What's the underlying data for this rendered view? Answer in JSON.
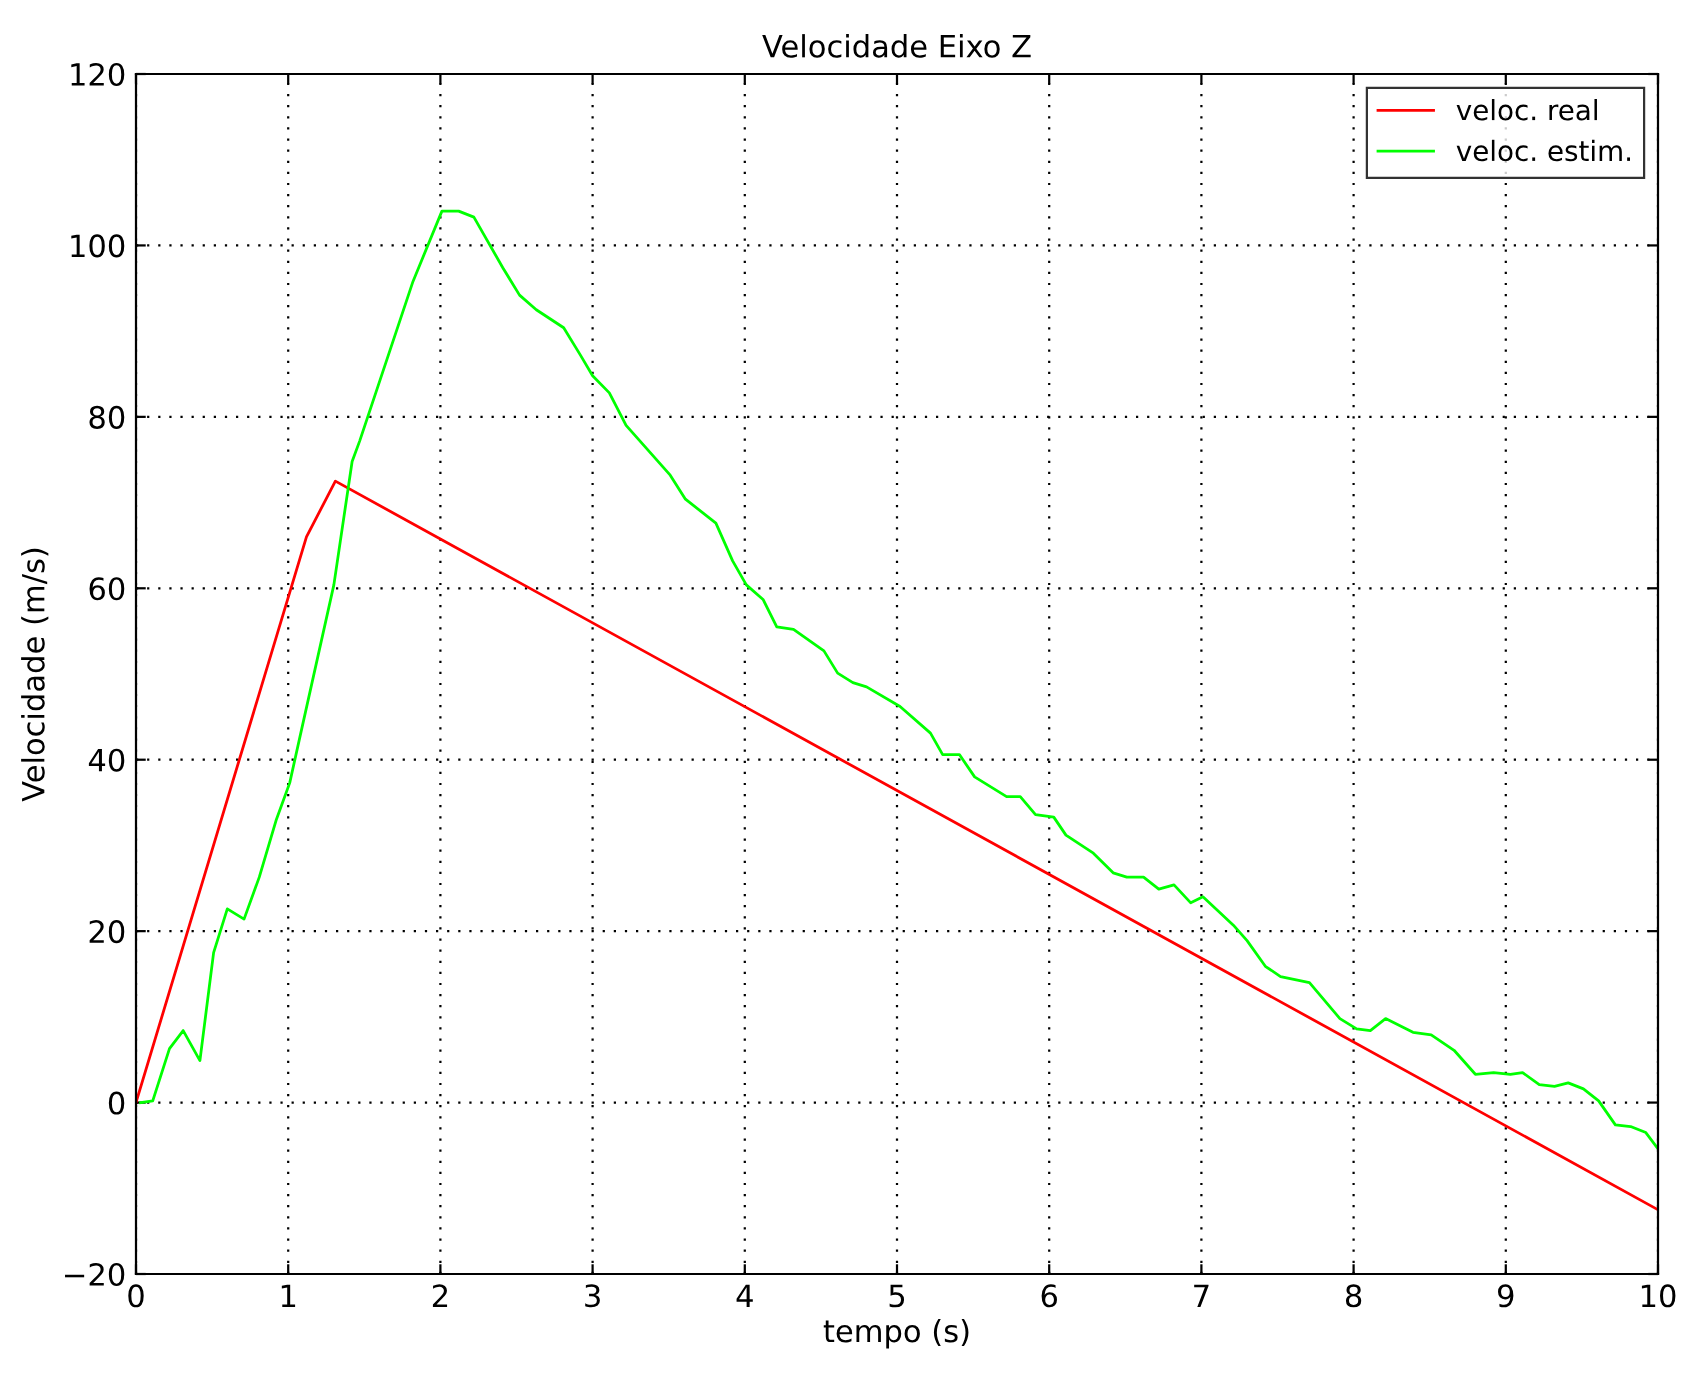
{
  "chart_data": {
    "type": "line",
    "title": "Velocidade Eixo Z",
    "xlabel": "tempo (s)",
    "ylabel": "Velocidade (m/s)",
    "xlim": [
      0,
      10
    ],
    "ylim": [
      -20,
      120
    ],
    "xticks": [
      0,
      1,
      2,
      3,
      4,
      5,
      6,
      7,
      8,
      9,
      10
    ],
    "yticks": [
      {
        "value": -20,
        "label": "−20"
      },
      0,
      20,
      40,
      60,
      80,
      100,
      120
    ],
    "grid": true,
    "legend": "top right",
    "line_style": "solid",
    "marker": "none",
    "series": [
      {
        "name": "veloc. real",
        "color": "#ff0000",
        "x": [
          0,
          1.12,
          1.31,
          10
        ],
        "values": [
          0,
          66,
          72.5,
          -12.5
        ]
      },
      {
        "name": "veloc. estim.",
        "color": "#00ff00",
        "x": [
          0.03,
          0.11,
          0.22,
          0.31,
          0.42,
          0.51,
          0.6,
          0.71,
          0.81,
          0.92,
          1.01,
          1.08,
          1.3,
          1.42,
          1.47,
          1.82,
          2.01,
          2.12,
          2.22,
          2.41,
          2.52,
          2.63,
          2.81,
          2.92,
          3.0,
          3.11,
          3.22,
          3.51,
          3.61,
          3.81,
          3.92,
          4.01,
          4.12,
          4.21,
          4.32,
          4.52,
          4.61,
          4.71,
          4.8,
          5.02,
          5.22,
          5.3,
          5.41,
          5.51,
          5.72,
          5.81,
          5.91,
          6.03,
          6.11,
          6.29,
          6.42,
          6.51,
          6.62,
          6.72,
          6.82,
          6.93,
          7.01,
          7.21,
          7.3,
          7.42,
          7.52,
          7.71,
          7.91,
          8.02,
          8.11,
          8.21,
          8.39,
          8.51,
          8.66,
          8.8,
          8.92,
          9.03,
          9.11,
          9.22,
          9.32,
          9.41,
          9.51,
          9.61,
          9.72,
          9.82,
          9.92,
          10.0
        ],
        "values": [
          0,
          0.2,
          6.3,
          8.4,
          4.9,
          17.5,
          22.6,
          21.4,
          26.3,
          32.9,
          37.3,
          42.9,
          60.4,
          74.8,
          77.2,
          95.8,
          104,
          104,
          103.3,
          97.4,
          94.2,
          92.5,
          90.4,
          87.2,
          84.8,
          82.8,
          79,
          73.2,
          70.4,
          67.6,
          63.2,
          60.4,
          58.7,
          55.5,
          55.2,
          52.7,
          50.1,
          49,
          48.5,
          46.2,
          43.1,
          40.6,
          40.6,
          38.0,
          35.7,
          35.7,
          33.6,
          33.3,
          31.2,
          29.1,
          26.8,
          26.3,
          26.3,
          24.9,
          25.4,
          23.3,
          24,
          20.7,
          18.9,
          15.9,
          14.7,
          14,
          9.8,
          8.6,
          8.4,
          9.8,
          8.2,
          7.9,
          6.1,
          3.3,
          3.5,
          3.3,
          3.5,
          2.1,
          1.9,
          2.3,
          1.6,
          0.2,
          -2.6,
          -2.8,
          -3.5,
          -5.4
        ]
      }
    ]
  }
}
